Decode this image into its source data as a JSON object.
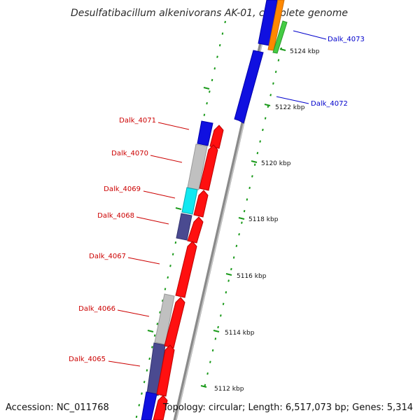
{
  "title": "Desulfatibacillum alkenivorans AK-01, complete genome",
  "footer": {
    "accession": "Accession: NC_011768",
    "topology": "Topology: circular; Length: 6,517,073 bp; Genes: 5,314"
  },
  "colors": {
    "backbone": "#8a8a8a",
    "forward_strand_genes": "#ff0000",
    "reverse_strand_genes": "#0000ff",
    "tick": "#1a9a1a",
    "label_forward": "#cc0000",
    "label_reverse": "#0000cc"
  },
  "position_ticks": [
    {
      "label": "5124 kbp",
      "kbp": 5124
    },
    {
      "label": "5122 kbp",
      "kbp": 5122
    },
    {
      "label": "5120 kbp",
      "kbp": 5120
    },
    {
      "label": "5118 kbp",
      "kbp": 5118
    },
    {
      "label": "5116 kbp",
      "kbp": 5116
    },
    {
      "label": "5114 kbp",
      "kbp": 5114
    },
    {
      "label": "5112 kbp",
      "kbp": 5112
    }
  ],
  "gene_labels": {
    "left": [
      "Dalk_4071",
      "Dalk_4070",
      "Dalk_4069",
      "Dalk_4068",
      "Dalk_4067",
      "Dalk_4066",
      "Dalk_4065"
    ],
    "right": [
      "Dalk_4073",
      "Dalk_4072"
    ]
  }
}
